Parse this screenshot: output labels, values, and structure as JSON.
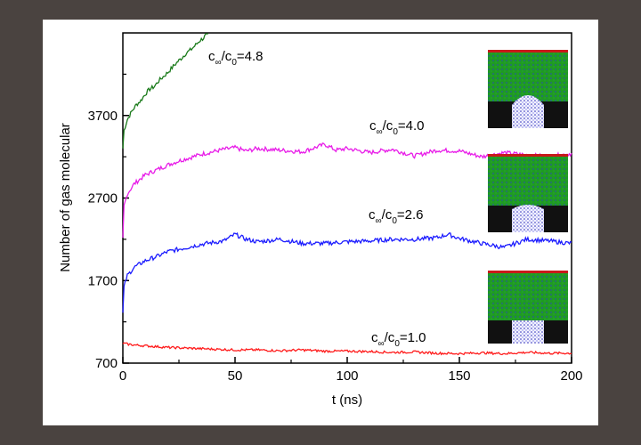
{
  "chart_data": {
    "type": "line",
    "title": "",
    "xlabel": "t (ns)",
    "ylabel": "Number of gas molecular",
    "xlim": [
      0,
      200
    ],
    "ylim": [
      700,
      4700
    ],
    "xticks": [
      0,
      50,
      100,
      150,
      200
    ],
    "xtick_labels": [
      "0",
      "50",
      "100",
      "150",
      "200"
    ],
    "yticks": [
      700,
      1700,
      2700,
      3700
    ],
    "ytick_labels": [
      "700",
      "1700",
      "2700",
      "3700"
    ],
    "grid": false,
    "legend": "none",
    "series": [
      {
        "label": "c∞/c0=4.8",
        "label_main": "c",
        "label_sub1": "∞",
        "label_mid": "/c",
        "label_sub2": "0",
        "label_tail": "=4.8",
        "color": "#1a7a1a",
        "x": [
          0,
          0.5,
          2,
          4,
          6,
          8,
          10,
          12,
          14,
          16,
          18,
          20,
          22,
          24,
          26,
          28,
          30,
          32,
          34,
          36,
          38
        ],
        "y": [
          3300,
          3520,
          3650,
          3750,
          3830,
          3880,
          3960,
          4020,
          4050,
          4120,
          4170,
          4220,
          4280,
          4340,
          4390,
          4450,
          4490,
          4540,
          4600,
          4640,
          4720
        ]
      },
      {
        "label": "c∞/c0=4.0",
        "label_main": "c",
        "label_sub1": "∞",
        "label_mid": "/c",
        "label_sub2": "0",
        "label_tail": "=4.0",
        "color": "#e81ce8",
        "x": [
          0,
          0.5,
          2,
          5,
          10,
          15,
          20,
          25,
          30,
          35,
          40,
          45,
          50,
          55,
          60,
          70,
          80,
          90,
          95,
          100,
          110,
          120,
          130,
          140,
          150,
          160,
          170,
          180,
          190,
          200
        ],
        "y": [
          2200,
          2600,
          2750,
          2870,
          2980,
          3040,
          3100,
          3150,
          3190,
          3230,
          3260,
          3290,
          3310,
          3270,
          3300,
          3280,
          3260,
          3350,
          3280,
          3300,
          3250,
          3290,
          3210,
          3280,
          3270,
          3200,
          3250,
          3220,
          3200,
          3240
        ]
      },
      {
        "label": "c∞/c0=2.6",
        "label_main": "c",
        "label_sub1": "∞",
        "label_mid": "/c",
        "label_sub2": "0",
        "label_tail": "=2.6",
        "color": "#1c1cff",
        "x": [
          0,
          0.5,
          2,
          5,
          10,
          15,
          20,
          25,
          30,
          35,
          40,
          45,
          50,
          55,
          60,
          70,
          80,
          90,
          100,
          110,
          120,
          130,
          140,
          145,
          150,
          160,
          170,
          180,
          190,
          200
        ],
        "y": [
          1300,
          1620,
          1760,
          1860,
          1940,
          1990,
          2050,
          2080,
          2110,
          2140,
          2160,
          2180,
          2260,
          2200,
          2170,
          2200,
          2150,
          2150,
          2170,
          2180,
          2200,
          2200,
          2220,
          2260,
          2210,
          2150,
          2100,
          2200,
          2180,
          2150
        ]
      },
      {
        "label": "c∞/c0=1.0",
        "label_main": "c",
        "label_sub1": "∞",
        "label_mid": "/c",
        "label_sub2": "0",
        "label_tail": "=1.0",
        "color": "#ff1c1c",
        "x": [
          0,
          2,
          5,
          10,
          20,
          30,
          40,
          50,
          60,
          70,
          80,
          90,
          100,
          110,
          120,
          130,
          140,
          150,
          160,
          170,
          180,
          190,
          200
        ],
        "y": [
          940,
          930,
          920,
          910,
          890,
          880,
          870,
          860,
          860,
          850,
          860,
          845,
          845,
          840,
          830,
          835,
          820,
          815,
          825,
          815,
          830,
          820,
          820
        ]
      }
    ],
    "insets": [
      {
        "description_id": "inset-4.8"
      },
      {
        "description_id": "inset-2.6"
      },
      {
        "description_id": "inset-1.0"
      }
    ]
  }
}
